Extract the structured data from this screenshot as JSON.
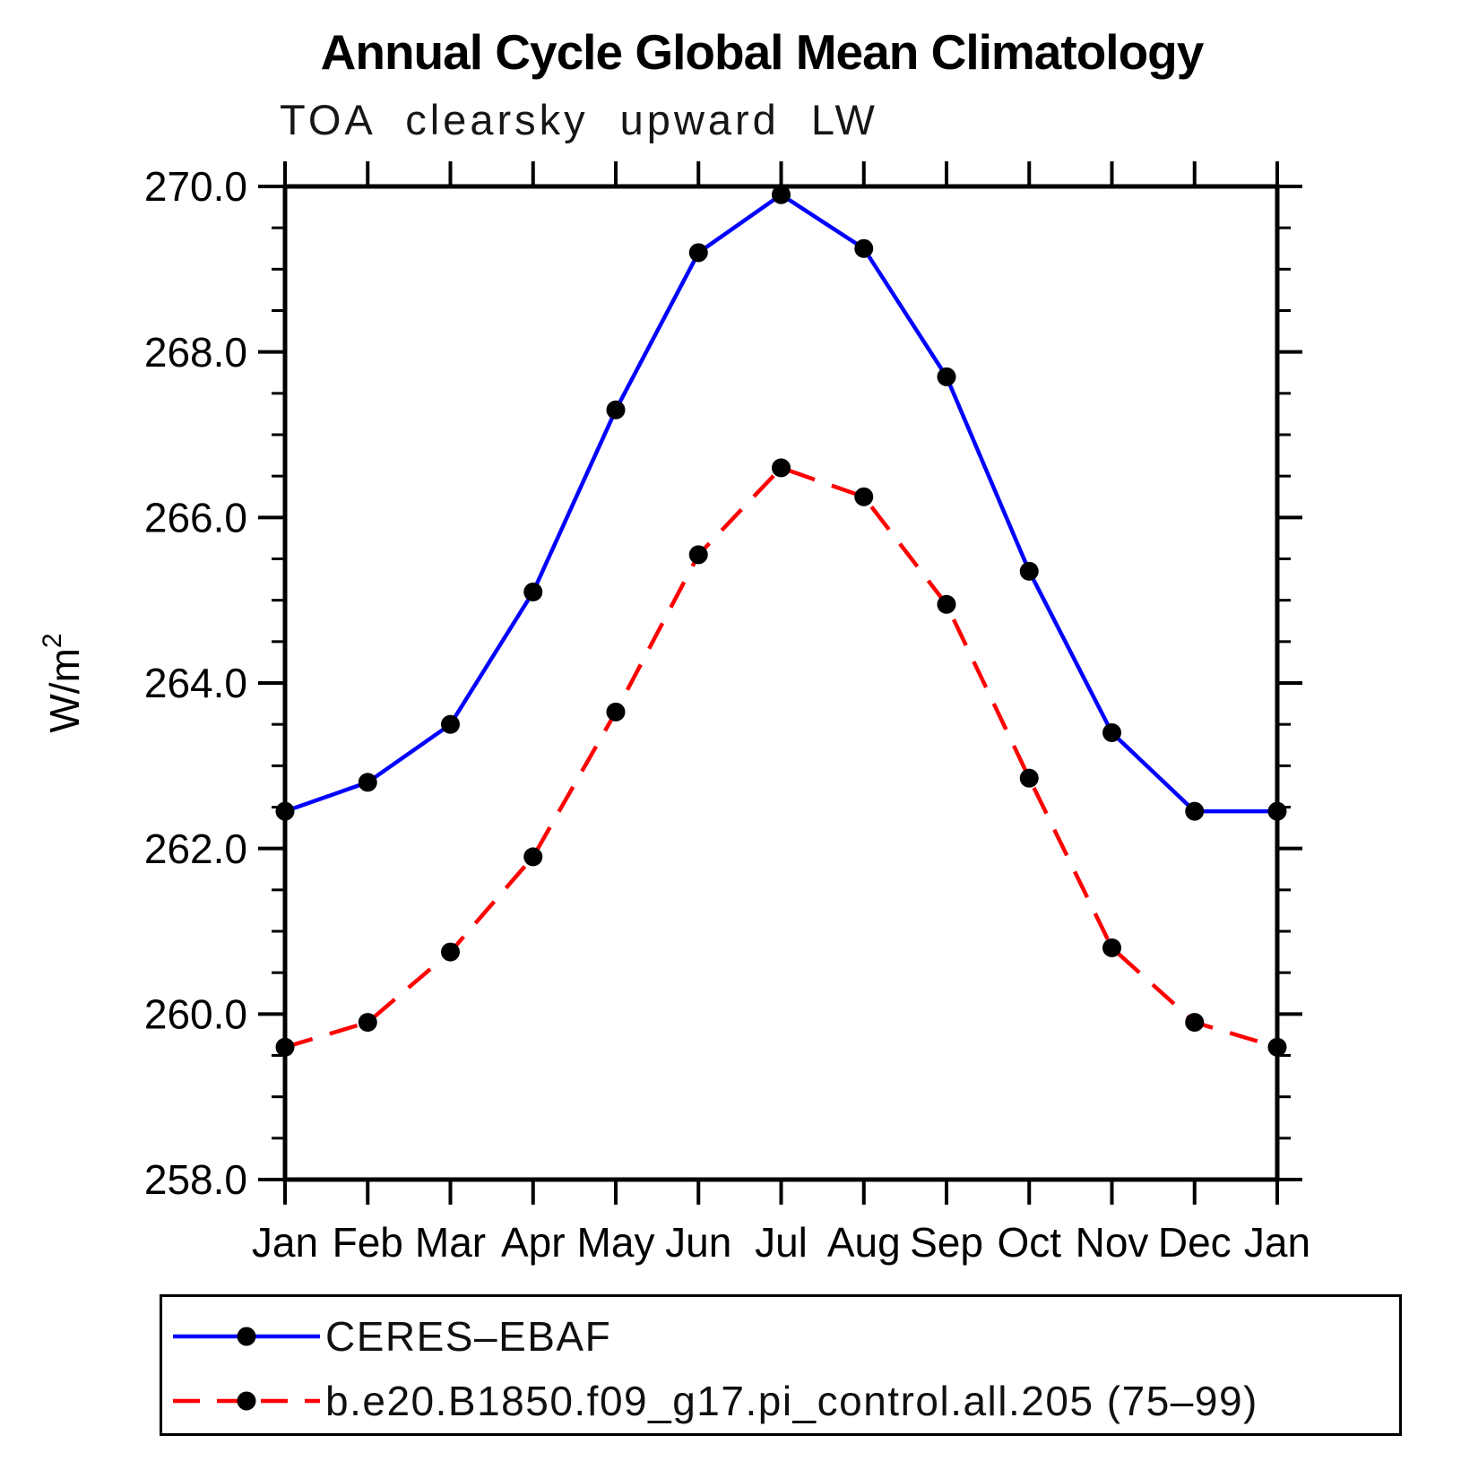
{
  "header": {
    "title": "Annual Cycle Global Mean Climatology",
    "subtitle": "TOA clearsky upward LW"
  },
  "legend": {
    "items": [
      {
        "label": "CERES–EBAF",
        "color": "#0000ff",
        "style": "solid",
        "marker": "black-dot"
      },
      {
        "label": "b.e20.B1850.f09_g17.pi_control.all.205 (75–99)",
        "color": "#ff0000",
        "style": "dashed",
        "marker": "black-dot"
      }
    ]
  },
  "chart_data": {
    "type": "line",
    "title": "Annual Cycle Global Mean Climatology",
    "subtitle": "TOA clearsky upward LW",
    "xlabel": "",
    "ylabel": "W/m²",
    "categories": [
      "Jan",
      "Feb",
      "Mar",
      "Apr",
      "May",
      "Jun",
      "Jul",
      "Aug",
      "Sep",
      "Oct",
      "Nov",
      "Dec",
      "Jan"
    ],
    "series": [
      {
        "name": "CERES–EBAF",
        "color": "#0000ff",
        "line_style": "solid",
        "marker": "circle",
        "marker_color": "#000000",
        "values": [
          262.45,
          262.8,
          263.5,
          265.1,
          267.3,
          269.2,
          269.9,
          269.25,
          267.7,
          265.35,
          263.4,
          262.45,
          262.45
        ]
      },
      {
        "name": "b.e20.B1850.f09_g17.pi_control.all.205 (75–99)",
        "color": "#ff0000",
        "line_style": "dashed",
        "marker": "circle",
        "marker_color": "#000000",
        "values": [
          259.6,
          259.9,
          260.75,
          261.9,
          263.65,
          265.55,
          266.6,
          266.25,
          264.95,
          262.85,
          260.8,
          259.9,
          259.6
        ]
      }
    ],
    "ylim": [
      258.0,
      270.0
    ],
    "yticks": [
      258,
      260,
      262,
      264,
      266,
      268,
      270
    ],
    "ytick_labels": [
      "258.0",
      "260.0",
      "262.0",
      "264.0",
      "266.0",
      "268.0",
      "270.0"
    ],
    "y_minor_tick_step": 0.5,
    "grid": false,
    "legend_position": "bottom-left"
  }
}
